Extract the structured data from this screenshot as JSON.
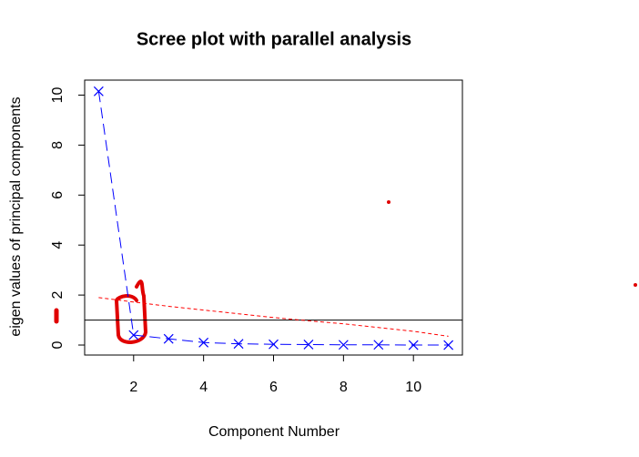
{
  "chart_data": {
    "type": "line",
    "title": "Scree plot with parallel analysis",
    "x_label": "Component Number",
    "y_label": "eigen values of principal components",
    "x": [
      1,
      2,
      3,
      4,
      5,
      6,
      7,
      8,
      9,
      10,
      11
    ],
    "series": [
      {
        "color": "#0000ff",
        "marker": "x",
        "dash": "12,6",
        "values": [
          10.15,
          0.4,
          0.25,
          0.1,
          0.05,
          0.03,
          0.02,
          0.01,
          0.01,
          0.0,
          0.0
        ]
      },
      {
        "color": "#ff0000",
        "marker": "none",
        "dash": "4,3",
        "values": [
          1.9,
          1.72,
          1.55,
          1.4,
          1.25,
          1.1,
          0.97,
          0.85,
          0.7,
          0.55,
          0.35
        ]
      }
    ],
    "reference_line": 1,
    "xlim": [
      0.6,
      11.4
    ],
    "xticks": [
      2,
      4,
      6,
      8,
      10
    ],
    "ylim": [
      -0.4,
      10.6
    ],
    "yticks": [
      0,
      2,
      4,
      6,
      8,
      10
    ]
  }
}
